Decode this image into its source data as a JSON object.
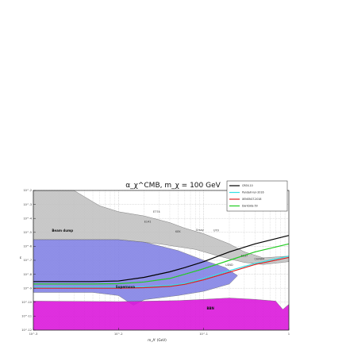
{
  "chart_data": {
    "type": "line",
    "title": "α_χ^CMB, m_χ = 100 GeV",
    "xlabel": "m_A' (GeV)",
    "ylabel": "ε",
    "x_scale": "log",
    "y_scale": "log",
    "xlim": [
      0.001,
      1
    ],
    "ylim": [
      1e-12,
      0.01
    ],
    "x_ticks": [
      "10^-3",
      "10^-2",
      "10^-1",
      "1"
    ],
    "y_ticks": [
      "10^-2",
      "10^-3",
      "10^-4",
      "10^-5",
      "10^-6",
      "10^-7",
      "10^-8",
      "10^-9",
      "10^-10",
      "10^-11",
      "10^-12"
    ],
    "grid": true,
    "legend_position": "top-right",
    "series": [
      {
        "name": "CREX-10",
        "color": "#000000",
        "x": [
          0.001,
          0.005,
          0.01,
          0.02,
          0.04,
          0.06,
          0.1,
          0.2,
          0.4,
          1.0
        ],
        "y": [
          3e-09,
          3e-09,
          3.3e-09,
          6e-09,
          1.5e-08,
          3e-08,
          8e-08,
          4e-07,
          1.5e-06,
          6e-06
        ]
      },
      {
        "name": "PandaX-run-2016",
        "color": "#33e0e6",
        "x": [
          0.001,
          0.005,
          0.01,
          0.02,
          0.04,
          0.06,
          0.1,
          0.2,
          0.4,
          1.0
        ],
        "y": [
          1.2e-09,
          1.2e-09,
          1.2e-09,
          1.3e-09,
          1.6e-09,
          2.2e-09,
          5e-09,
          1.8e-08,
          6e-08,
          2e-07
        ]
      },
      {
        "name": "XENON1T-2018",
        "color": "#dd2222",
        "x": [
          0.001,
          0.005,
          0.01,
          0.02,
          0.04,
          0.06,
          0.1,
          0.2,
          0.4,
          1.0
        ],
        "y": [
          1e-09,
          1e-09,
          1e-09,
          1.1e-09,
          1.35e-09,
          1.9e-09,
          4e-09,
          1.4e-08,
          5e-08,
          1.6e-07
        ]
      },
      {
        "name": "DarkSide-50",
        "color": "#22cc22",
        "x": [
          0.001,
          0.005,
          0.01,
          0.02,
          0.04,
          0.06,
          0.1,
          0.2,
          0.4,
          1.0
        ],
        "y": [
          2e-09,
          2e-09,
          2.1e-09,
          2.8e-09,
          5e-09,
          1e-08,
          2.5e-08,
          1e-07,
          4e-07,
          1.5e-06
        ]
      }
    ],
    "regions": [
      {
        "name": "Beam dump",
        "label": "Beam dump",
        "color": "#bdbdbd",
        "label_at": {
          "x": 0.0022,
          "y": 1.1e-05
        }
      },
      {
        "name": "Supernova",
        "label": "Supernova",
        "color": "#7f7fe6",
        "label_at": {
          "x": 0.012,
          "y": 1e-09
        }
      },
      {
        "name": "BBN",
        "label": "BBN",
        "color": "#e020e0",
        "label_at": {
          "x": 0.12,
          "y": 3e-11
        }
      }
    ],
    "experiment_labels": [
      {
        "text": "E774",
        "x": 0.028,
        "y": 0.00025
      },
      {
        "text": "E141",
        "x": 0.022,
        "y": 5e-05
      },
      {
        "text": "KEK",
        "x": 0.05,
        "y": 1e-05
      },
      {
        "text": "Orsay",
        "x": 0.09,
        "y": 1.3e-05
      },
      {
        "text": "U70",
        "x": 0.14,
        "y": 1.2e-05
      },
      {
        "text": "E137",
        "x": 0.3,
        "y": 1.8e-07
      },
      {
        "text": "CHARM",
        "x": 0.45,
        "y": 1.1e-07
      },
      {
        "text": "LSND",
        "x": 0.2,
        "y": 4e-08
      }
    ]
  }
}
